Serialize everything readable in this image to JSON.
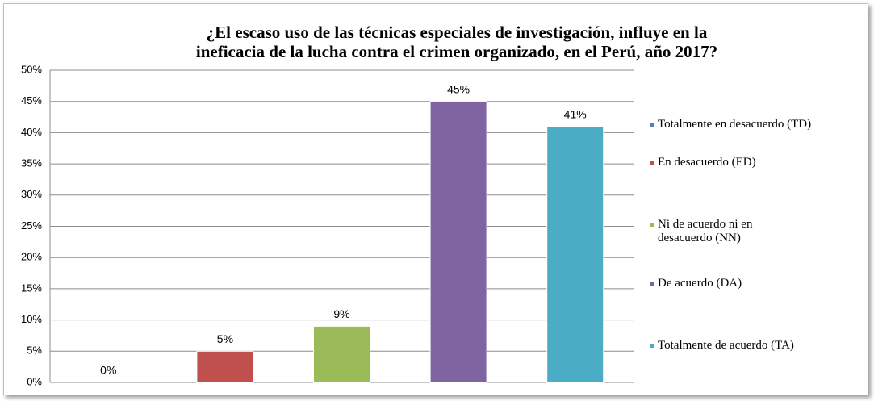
{
  "chart_data": {
    "type": "bar",
    "title": [
      "¿El escaso uso de las técnicas especiales de investigación, influye en la",
      "ineficacia de la lucha contra el crimen organizado, en el Perú, año 2017?"
    ],
    "categories": [
      null
    ],
    "series": [
      {
        "name": "Totalmente en desacuerdo (TD)",
        "color": "#4f81bd",
        "values": [
          0
        ],
        "value_labels": [
          "0%"
        ]
      },
      {
        "name": "En desacuerdo (ED)",
        "color": "#c0504d",
        "values": [
          5
        ],
        "value_labels": [
          "5%"
        ]
      },
      {
        "name": "Ni de acuerdo ni en desacuerdo (NN)",
        "color": "#9bbb59",
        "values": [
          9
        ],
        "value_labels": [
          "9%"
        ]
      },
      {
        "name": "De acuerdo (DA)",
        "color": "#8064a2",
        "values": [
          45
        ],
        "value_labels": [
          "45%"
        ]
      },
      {
        "name": "Totalmente de acuerdo (TA)",
        "color": "#4bacc6",
        "values": [
          41
        ],
        "value_labels": [
          "41%"
        ]
      }
    ],
    "ylim": [
      0,
      50
    ],
    "yticks": [
      {
        "value": 0,
        "label": "0%"
      },
      {
        "value": 5,
        "label": "5%"
      },
      {
        "value": 10,
        "label": "10%"
      },
      {
        "value": 15,
        "label": "15%"
      },
      {
        "value": 20,
        "label": "20%"
      },
      {
        "value": 25,
        "label": "25%"
      },
      {
        "value": 30,
        "label": "30%"
      },
      {
        "value": 35,
        "label": "35%"
      },
      {
        "value": 40,
        "label": "40%"
      },
      {
        "value": 45,
        "label": "45%"
      },
      {
        "value": 50,
        "label": "50%"
      }
    ],
    "grid": true,
    "legend": "right"
  }
}
